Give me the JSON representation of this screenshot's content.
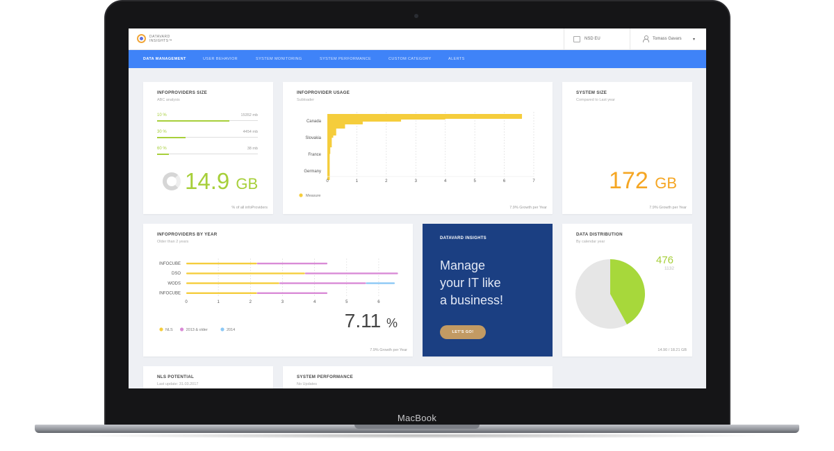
{
  "device_label": "MacBook",
  "app": {
    "logo_line1": "DATAVARD",
    "logo_line2": "INSIGHTS™",
    "region": "NSD EU",
    "user_name": "Tomass Gavars",
    "user_caret": "▾"
  },
  "nav": [
    "DATA MANAGEMENT",
    "USER BEHAVIOR",
    "SYSTEM MONITORING",
    "SYSTEM PERFORMANCE",
    "CUSTOM CATEGORY",
    "ALERTS"
  ],
  "infoproviders_size": {
    "title": "INFOPROVIDERS SIZE",
    "subtitle": "ABC analysis",
    "rows": [
      {
        "pct_label": "10 %",
        "mb": "15352 mb",
        "fill": 0.72
      },
      {
        "pct_label": "30 %",
        "mb": "4454 mb",
        "fill": 0.28
      },
      {
        "pct_label": "60 %",
        "mb": "38 mb",
        "fill": 0.12
      }
    ],
    "value": "14.9",
    "unit": "GB",
    "footer": "% of all infoProviders"
  },
  "infoprovider_usage": {
    "title": "INFOPROVIDER USAGE",
    "subtitle": "Subloader",
    "footer": "7.9% Growth per Year"
  },
  "system_size": {
    "title": "SYSTEM SIZE",
    "subtitle": "Compared to Last year",
    "value": "172",
    "unit": "GB",
    "footer": "7.9% Growth per Year"
  },
  "infoproviders_by_year": {
    "title": "INFOPROVIDERS BY YEAR",
    "subtitle": "Older than 2 years",
    "value": "7.11",
    "unit": "%",
    "footer": "7.9% Growth per Year"
  },
  "promo": {
    "title": "DATAVARD INSIGHTS",
    "line1": "Manage",
    "line2": "your IT like",
    "line3": "a business!",
    "button": "LET'S GO!"
  },
  "data_distribution": {
    "title": "DATA DISTRIBUTION",
    "subtitle": "By calendar year",
    "value": "476",
    "value2": "1132",
    "footer": "14.90 / 18.21 GB",
    "fraction": 0.42
  },
  "nls_potential": {
    "title": "NLS POTENTIAL",
    "subtitle": "Last update: 31.03.2017"
  },
  "system_performance": {
    "title": "SYSTEM PERFORMANCE",
    "subtitle": "No Updates"
  },
  "chart_data": [
    {
      "type": "bar",
      "orientation": "horizontal",
      "categories": [
        "Canada",
        "Slovakia",
        "France",
        "Germany"
      ],
      "series": [
        {
          "name": "Measure",
          "values": [
            6.6,
            0.2,
            0.1,
            0.05
          ]
        }
      ],
      "xticks": [
        "0",
        "1",
        "2",
        "3",
        "4",
        "5",
        "6",
        "7"
      ],
      "xlim": [
        0,
        7
      ],
      "legend": "bottom-left",
      "colors": {
        "Measure": "#f5cd3c"
      }
    },
    {
      "type": "bar",
      "orientation": "horizontal",
      "stacked": true,
      "categories": [
        "INFOCUBE",
        "DSO",
        "WODS",
        "INFOCUBE"
      ],
      "series": [
        {
          "name": "NLS",
          "values": [
            2.2,
            3.7,
            2.9,
            2.2
          ]
        },
        {
          "name": "2013 & older",
          "values": [
            2.2,
            2.9,
            2.7,
            2.2
          ]
        },
        {
          "name": "2014",
          "values": [
            0,
            0,
            0.9,
            0
          ]
        }
      ],
      "xticks": [
        "0",
        "1",
        "2",
        "3",
        "4",
        "5",
        "6"
      ],
      "xlim": [
        0,
        6.5
      ],
      "legend": "bottom-left",
      "colors": {
        "NLS": "#f5cd3c",
        "2013 & older": "#d98ad6",
        "2014": "#8cc8f5"
      }
    }
  ]
}
